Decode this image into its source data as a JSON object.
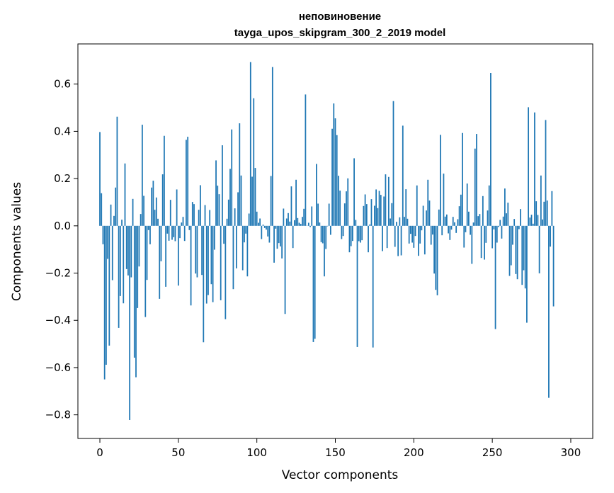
{
  "chart_data": {
    "type": "bar",
    "title": "неповиновение",
    "subtitle": "tayga_upos_skipgram_300_2_2019 model",
    "xlabel": "Vector components",
    "ylabel": "Components values",
    "xlim": [
      -14,
      314
    ],
    "ylim": [
      -0.9,
      0.77
    ],
    "xticks": [
      0,
      50,
      100,
      150,
      200,
      250,
      300
    ],
    "yticks": [
      -0.8,
      -0.6,
      -0.4,
      -0.2,
      0.0,
      0.2,
      0.4,
      0.6
    ],
    "ytick_labels": [
      "−0.8",
      "−0.6",
      "−0.4",
      "−0.2",
      "0.0",
      "0.2",
      "0.4",
      "0.6"
    ],
    "grid": false,
    "bar_color": "#1f77b4",
    "values": [
      0.397,
      0.138,
      -0.078,
      -0.65,
      -0.588,
      -0.14,
      -0.507,
      0.09,
      -0.23,
      0.042,
      0.162,
      0.462,
      -0.432,
      -0.297,
      0.026,
      -0.328,
      0.264,
      -0.183,
      -0.21,
      -0.822,
      -0.218,
      0.114,
      -0.558,
      -0.641,
      -0.348,
      -0.172,
      0.05,
      0.428,
      0.127,
      -0.386,
      -0.229,
      -0.018,
      -0.078,
      0.162,
      0.191,
      0.068,
      0.12,
      0.03,
      -0.309,
      -0.15,
      0.218,
      0.381,
      -0.258,
      -0.033,
      -0.063,
      0.11,
      -0.059,
      -0.048,
      -0.065,
      0.154,
      -0.253,
      -0.052,
      0.014,
      0.038,
      -0.064,
      0.364,
      0.377,
      -0.018,
      -0.337,
      0.101,
      0.092,
      -0.202,
      -0.218,
      0.068,
      0.172,
      -0.208,
      -0.493,
      0.088,
      -0.329,
      -0.293,
      0.067,
      -0.247,
      -0.323,
      -0.101,
      0.277,
      0.17,
      0.134,
      -0.315,
      0.341,
      -0.076,
      -0.395,
      0.03,
      0.111,
      0.241,
      0.408,
      -0.268,
      0.074,
      -0.18,
      0.142,
      0.434,
      0.213,
      -0.188,
      -0.07,
      -0.033,
      -0.214,
      0.052,
      0.693,
      0.208,
      0.54,
      0.245,
      0.06,
      0.013,
      0.031,
      -0.056,
      0.005,
      -0.009,
      -0.016,
      -0.045,
      -0.071,
      0.211,
      0.672,
      -0.156,
      -0.012,
      -0.097,
      -0.073,
      -0.087,
      -0.138,
      0.073,
      -0.373,
      0.031,
      0.054,
      0.018,
      0.167,
      -0.094,
      0.024,
      0.195,
      0.033,
      0.013,
      0.008,
      0.038,
      0.072,
      0.556,
      0.001,
      0.013,
      -0.005,
      0.082,
      -0.492,
      -0.478,
      0.262,
      0.094,
      0.014,
      -0.069,
      -0.074,
      -0.214,
      -0.098,
      -0.002,
      0.094,
      -0.038,
      0.411,
      0.518,
      0.455,
      0.384,
      0.212,
      0.149,
      -0.056,
      -0.043,
      0.095,
      0.146,
      0.201,
      -0.112,
      -0.086,
      -0.064,
      0.286,
      0.025,
      -0.513,
      -0.065,
      -0.071,
      -0.061,
      0.084,
      0.133,
      0.092,
      -0.112,
      0.006,
      0.113,
      -0.515,
      0.085,
      0.154,
      0.075,
      0.148,
      0.131,
      -0.107,
      0.124,
      0.218,
      -0.094,
      0.207,
      0.031,
      0.096,
      0.528,
      -0.089,
      0.017,
      -0.128,
      0.036,
      -0.125,
      0.424,
      0.038,
      0.155,
      0.03,
      -0.075,
      -0.034,
      -0.071,
      -0.093,
      -0.043,
      0.171,
      -0.127,
      -0.075,
      -0.019,
      0.085,
      -0.121,
      0.065,
      0.195,
      0.107,
      -0.08,
      -0.037,
      -0.202,
      -0.271,
      -0.294,
      0.069,
      0.385,
      -0.04,
      0.221,
      0.039,
      0.048,
      -0.032,
      -0.06,
      -0.016,
      0.038,
      0.015,
      -0.03,
      0.028,
      0.083,
      0.132,
      0.393,
      -0.092,
      -0.027,
      0.179,
      0.06,
      -0.038,
      -0.161,
      0.014,
      0.327,
      0.389,
      0.041,
      0.05,
      -0.136,
      0.126,
      -0.143,
      -0.072,
      0.065,
      0.171,
      0.647,
      -0.095,
      -0.015,
      -0.437,
      -0.071,
      -0.005,
      0.025,
      -0.054,
      0.039,
      0.158,
      0.053,
      0.098,
      -0.212,
      -0.167,
      -0.08,
      0.029,
      -0.204,
      -0.226,
      -0.014,
      0.071,
      -0.25,
      -0.188,
      -0.265,
      -0.41,
      0.502,
      0.035,
      0.047,
      0.009,
      0.48,
      0.104,
      0.046,
      -0.201,
      0.213,
      0.027,
      0.102,
      0.448,
      0.107,
      -0.728,
      -0.088,
      0.147,
      -0.341
    ]
  }
}
